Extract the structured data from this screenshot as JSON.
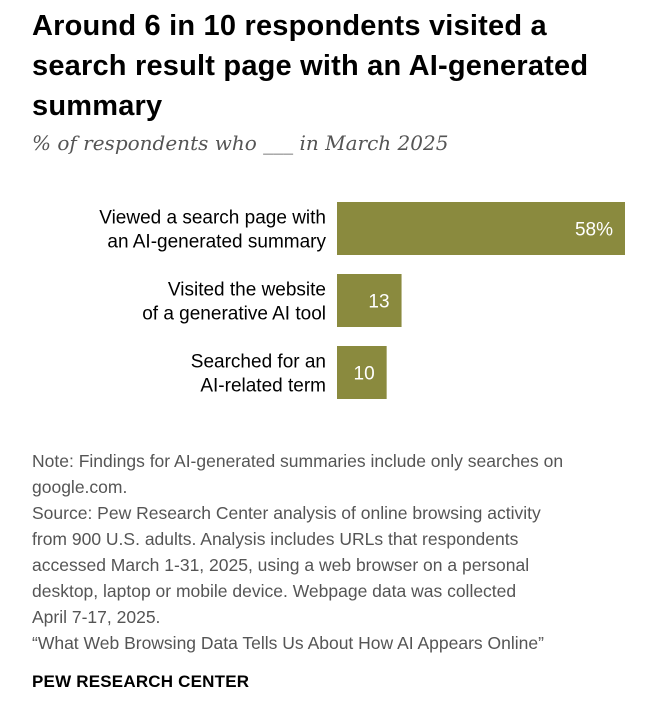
{
  "colors": {
    "bar": "#8a8a3e",
    "bar_label": "#ffffff",
    "category_text": "#000000",
    "note_text": "#555555"
  },
  "header": {
    "title_line1": "Around 6 in 10 respondents visited a",
    "title_line2": "search result page with an AI-generated",
    "title_line3": "summary",
    "subtitle": "% of respondents who ___ in March 2025"
  },
  "chart_data": {
    "type": "bar",
    "orientation": "horizontal",
    "title": "Around 6 in 10 respondents visited a search result page with an AI-generated summary",
    "subtitle": "% of respondents who ___ in March 2025",
    "categories": [
      [
        "Viewed a search page with",
        "an AI-generated summary"
      ],
      [
        "Visited the website",
        "of a generative AI tool"
      ],
      [
        "Searched for an",
        "AI-related term"
      ]
    ],
    "values": [
      58,
      13,
      10
    ],
    "value_labels": [
      "58%",
      "13",
      "10"
    ],
    "xlim": [
      0,
      58
    ],
    "xlabel": "",
    "ylabel": "",
    "grid": false,
    "legend": "none"
  },
  "notes": {
    "note_line1": "Note: Findings for AI-generated summaries include only searches on",
    "note_line2": "google.com.",
    "source_line1": "Source: Pew Research Center analysis of online browsing activity",
    "source_line2": "from 900 U.S. adults. Analysis includes URLs that respondents",
    "source_line3": "accessed March 1-31, 2025, using a web browser on a personal",
    "source_line4": "desktop, laptop or mobile device. Webpage data was collected",
    "source_line5": "April 7-17, 2025.",
    "report_line": "“What Web Browsing Data Tells Us About How AI Appears Online”"
  },
  "footer": {
    "brand": "PEW RESEARCH CENTER"
  }
}
